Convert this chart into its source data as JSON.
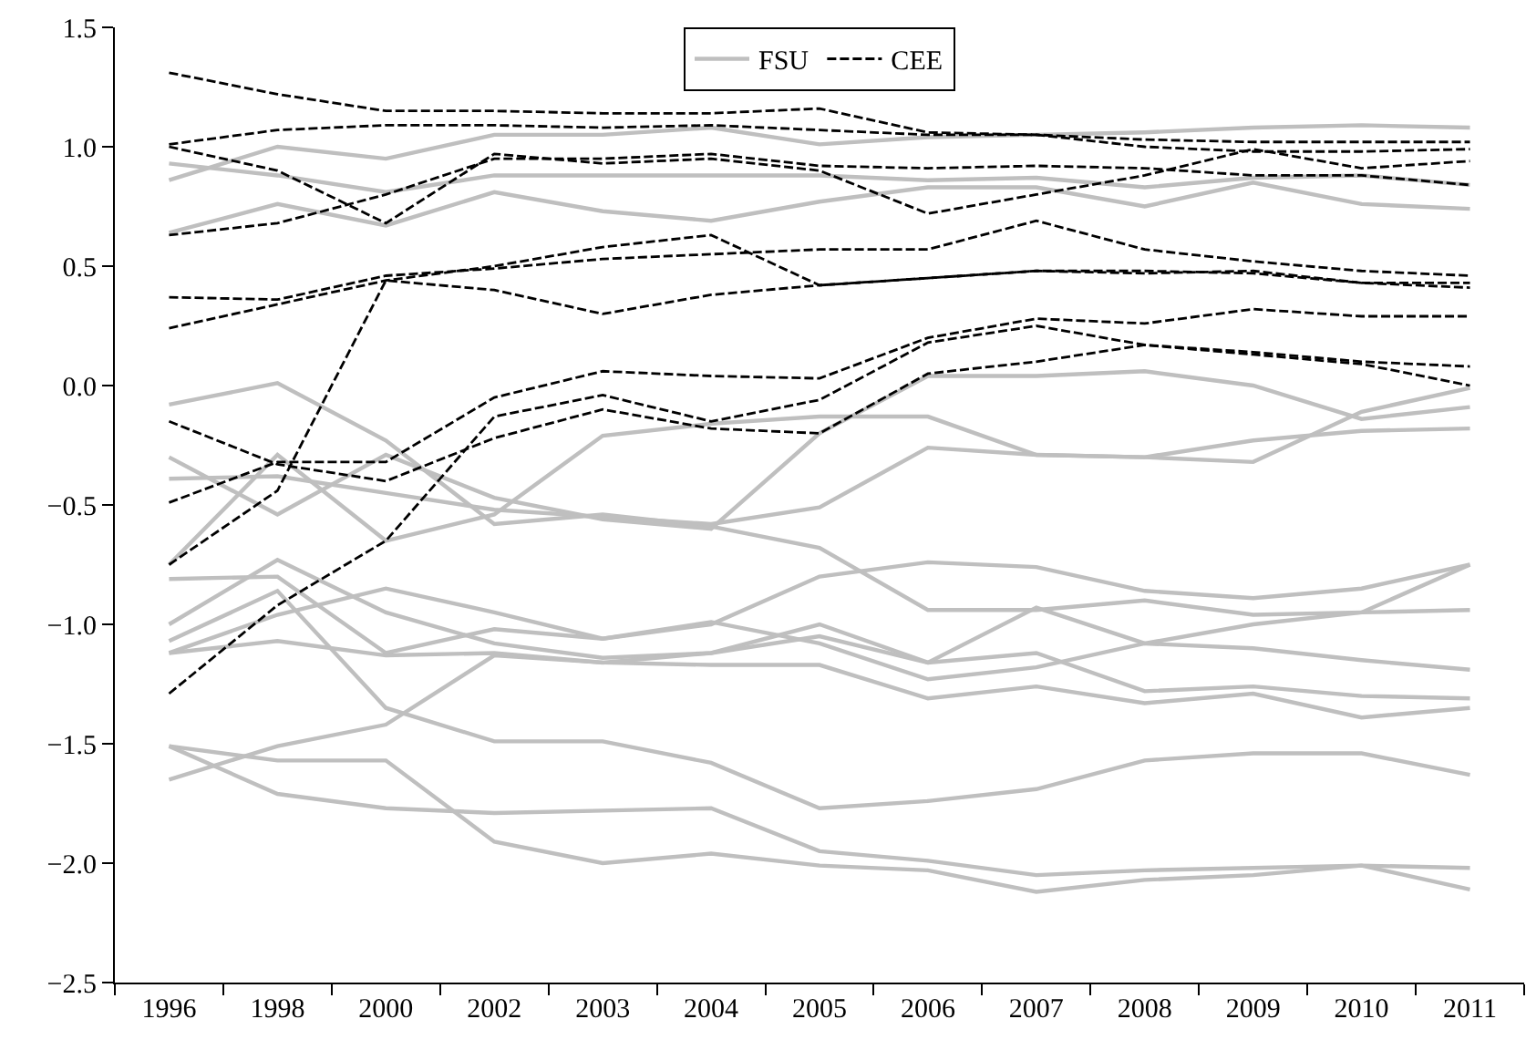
{
  "chart_data": {
    "type": "line",
    "categories": [
      "1996",
      "1998",
      "2000",
      "2002",
      "2003",
      "2004",
      "2005",
      "2006",
      "2007",
      "2008",
      "2009",
      "2010",
      "2011"
    ],
    "ylim": [
      -2.5,
      1.5
    ],
    "yticks": [
      {
        "value": -2.5,
        "label": "−2.5"
      },
      {
        "value": -2,
        "label": "−2.0"
      },
      {
        "value": -1.5,
        "label": "−1.5"
      },
      {
        "value": -1,
        "label": "−1.0"
      },
      {
        "value": -0.5,
        "label": "−0.5"
      },
      {
        "value": 0,
        "label": "0.0"
      },
      {
        "value": 0.5,
        "label": "0.5"
      },
      {
        "value": 1,
        "label": "1.0"
      },
      {
        "value": 1.5,
        "label": "1.5"
      }
    ],
    "grid": false,
    "legend": "top",
    "marker": "none",
    "series": [
      {
        "name": "FSU",
        "color": "#bfbfbf",
        "line_style": "solid",
        "values": [
          0.86,
          1.0,
          0.95,
          1.05,
          1.05,
          1.08,
          1.01,
          1.04,
          1.05,
          1.06,
          1.08,
          1.09,
          1.08
        ]
      },
      {
        "color": "#bfbfbf",
        "line_style": "solid",
        "values": [
          0.93,
          0.88,
          0.81,
          0.88,
          0.88,
          0.88,
          0.88,
          0.86,
          0.87,
          0.83,
          0.87,
          0.88,
          0.84
        ]
      },
      {
        "color": "#bfbfbf",
        "line_style": "solid",
        "values": [
          0.64,
          0.76,
          0.67,
          0.81,
          0.73,
          0.69,
          0.77,
          0.83,
          0.83,
          0.75,
          0.85,
          0.76,
          0.74
        ]
      },
      {
        "color": "#bfbfbf",
        "line_style": "solid",
        "values": [
          -0.08,
          0.01,
          -0.23,
          -0.58,
          -0.54,
          -0.59,
          -0.68,
          -0.94,
          -0.94,
          -0.9,
          -0.96,
          -0.95,
          -0.94
        ]
      },
      {
        "color": "#bfbfbf",
        "line_style": "solid",
        "values": [
          -0.75,
          -0.29,
          -0.65,
          -0.54,
          -0.21,
          -0.16,
          -0.13,
          -0.13,
          -0.29,
          -0.3,
          -0.32,
          -0.11,
          -0.01
        ]
      },
      {
        "color": "#bfbfbf",
        "line_style": "solid",
        "values": [
          -0.3,
          -0.54,
          -0.29,
          -0.47,
          -0.56,
          -0.6,
          -0.2,
          0.04,
          0.04,
          0.06,
          0.0,
          -0.14,
          -0.09
        ]
      },
      {
        "color": "#bfbfbf",
        "line_style": "solid",
        "values": [
          -0.39,
          -0.38,
          -0.45,
          -0.52,
          -0.55,
          -0.58,
          -0.51,
          -0.26,
          -0.29,
          -0.3,
          -0.23,
          -0.19,
          -0.18
        ]
      },
      {
        "color": "#bfbfbf",
        "line_style": "solid",
        "values": [
          -0.81,
          -0.8,
          -1.12,
          -1.02,
          -1.06,
          -1.0,
          -0.8,
          -0.74,
          -0.76,
          -0.86,
          -0.89,
          -0.85,
          -0.75
        ]
      },
      {
        "color": "#bfbfbf",
        "line_style": "solid",
        "values": [
          -1.0,
          -0.73,
          -0.95,
          -1.08,
          -1.14,
          -1.12,
          -1.0,
          -1.16,
          -0.93,
          -1.08,
          -1.0,
          -0.95,
          -0.75
        ]
      },
      {
        "color": "#bfbfbf",
        "line_style": "solid",
        "values": [
          -1.12,
          -0.96,
          -0.85,
          -0.95,
          -1.06,
          -0.99,
          -1.08,
          -1.23,
          -1.18,
          -1.08,
          -1.1,
          -1.15,
          -1.19
        ]
      },
      {
        "color": "#bfbfbf",
        "line_style": "solid",
        "values": [
          -1.07,
          -0.86,
          -1.35,
          -1.49,
          -1.49,
          -1.58,
          -1.77,
          -1.74,
          -1.69,
          -1.57,
          -1.54,
          -1.54,
          -1.63
        ]
      },
      {
        "color": "#bfbfbf",
        "line_style": "solid",
        "values": [
          -1.65,
          -1.51,
          -1.42,
          -1.13,
          -1.16,
          -1.17,
          -1.17,
          -1.31,
          -1.26,
          -1.33,
          -1.29,
          -1.39,
          -1.35
        ]
      },
      {
        "color": "#bfbfbf",
        "line_style": "solid",
        "values": [
          -1.51,
          -1.57,
          -1.57,
          -1.91,
          -2.0,
          -1.96,
          -2.01,
          -2.03,
          -2.12,
          -2.07,
          -2.05,
          -2.01,
          -2.11
        ]
      },
      {
        "color": "#bfbfbf",
        "line_style": "solid",
        "values": [
          -1.51,
          -1.71,
          -1.77,
          -1.79,
          -1.78,
          -1.77,
          -1.95,
          -1.99,
          -2.05,
          -2.03,
          -2.02,
          -2.01,
          -2.02
        ]
      },
      {
        "color": "#bfbfbf",
        "line_style": "solid",
        "values": [
          -1.12,
          -1.07,
          -1.13,
          -1.12,
          -1.16,
          -1.12,
          -1.05,
          -1.16,
          -1.12,
          -1.28,
          -1.26,
          -1.3,
          -1.31
        ]
      },
      {
        "name": "CEE",
        "color": "#000000",
        "line_style": "dashed",
        "values": [
          1.31,
          1.22,
          1.15,
          1.15,
          1.14,
          1.14,
          1.16,
          1.06,
          1.05,
          1.03,
          1.02,
          1.02,
          1.02
        ]
      },
      {
        "color": "#000000",
        "line_style": "dashed",
        "values": [
          1.01,
          1.07,
          1.09,
          1.09,
          1.08,
          1.09,
          1.07,
          1.05,
          1.05,
          1.0,
          0.98,
          0.98,
          0.99
        ]
      },
      {
        "color": "#000000",
        "line_style": "dashed",
        "values": [
          1.0,
          0.9,
          0.68,
          0.97,
          0.93,
          0.95,
          0.9,
          0.72,
          0.8,
          0.88,
          0.99,
          0.91,
          0.94
        ]
      },
      {
        "color": "#000000",
        "line_style": "dashed",
        "values": [
          0.63,
          0.68,
          0.8,
          0.95,
          0.95,
          0.97,
          0.92,
          0.91,
          0.92,
          0.91,
          0.88,
          0.88,
          0.84
        ]
      },
      {
        "color": "#000000",
        "line_style": "dashed",
        "values": [
          0.37,
          0.36,
          0.46,
          0.49,
          0.53,
          0.55,
          0.57,
          0.57,
          0.69,
          0.57,
          0.52,
          0.48,
          0.46
        ]
      },
      {
        "color": "#000000",
        "line_style": "dashed",
        "values": [
          0.24,
          0.34,
          0.44,
          0.5,
          0.58,
          0.63,
          0.42,
          0.45,
          0.48,
          0.48,
          0.47,
          0.43,
          0.43
        ]
      },
      {
        "color": "#000000",
        "line_style": "dashed",
        "values": [
          -0.75,
          -0.44,
          0.44,
          0.4,
          0.3,
          0.38,
          0.42,
          0.45,
          0.48,
          0.47,
          0.48,
          0.43,
          0.41
        ]
      },
      {
        "color": "#000000",
        "line_style": "dashed",
        "values": [
          -0.49,
          -0.32,
          -0.32,
          -0.05,
          0.06,
          0.04,
          0.03,
          0.2,
          0.28,
          0.26,
          0.32,
          0.29,
          0.29
        ]
      },
      {
        "color": "#000000",
        "line_style": "dashed",
        "values": [
          -0.15,
          -0.33,
          -0.4,
          -0.22,
          -0.1,
          -0.18,
          -0.2,
          0.05,
          0.1,
          0.17,
          0.13,
          0.09,
          0.0
        ]
      },
      {
        "color": "#000000",
        "line_style": "dashed",
        "values": [
          -1.29,
          -0.92,
          -0.65,
          -0.13,
          -0.04,
          -0.15,
          -0.06,
          0.18,
          0.25,
          0.17,
          0.14,
          0.1,
          0.08
        ]
      }
    ]
  }
}
